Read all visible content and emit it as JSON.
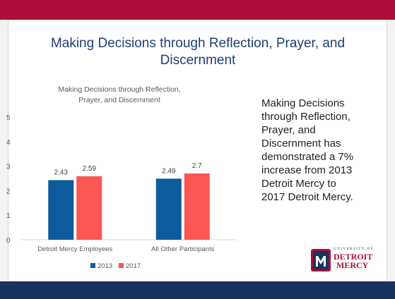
{
  "slide": {
    "title_lines": [
      "Making Decisions through Reflection, Prayer, and",
      "Discernment"
    ],
    "side_text_lines": [
      "Making Decisions",
      "through Reflection,",
      "Prayer, and",
      "Discernment has",
      "demonstrated a 7%",
      "increase from 2013",
      "Detroit Mercy to",
      "2017 Detroit Mercy."
    ],
    "logo": {
      "university_of": "UNIVERSITY OF",
      "name_line1": "DETROIT",
      "name_line2": "MERCY",
      "monogram": "m",
      "icon": "university-logo-icon"
    },
    "colors": {
      "header_band": "#ad0f3a",
      "footer_band": "#17345f",
      "title": "#1d3f73"
    }
  },
  "chart_data": {
    "type": "bar",
    "title_lines": [
      "Making Decisions through Reflection,",
      "Prayer, and Discernment"
    ],
    "categories": [
      "Detroit Mercy Employees",
      "All Other Participants"
    ],
    "series": [
      {
        "name": "2013",
        "values": [
          2.43,
          2.49
        ],
        "labels": [
          "2.43",
          "2.49"
        ],
        "color": "#0e5c9e"
      },
      {
        "name": "2017",
        "values": [
          2.59,
          2.7
        ],
        "labels": [
          "2.59",
          "2.7"
        ],
        "color": "#fa5652"
      }
    ],
    "yticks": [
      "0",
      "1",
      "2",
      "3",
      "4",
      "5"
    ],
    "ylim": [
      0,
      5
    ],
    "grid": false,
    "legend": "bottom"
  }
}
